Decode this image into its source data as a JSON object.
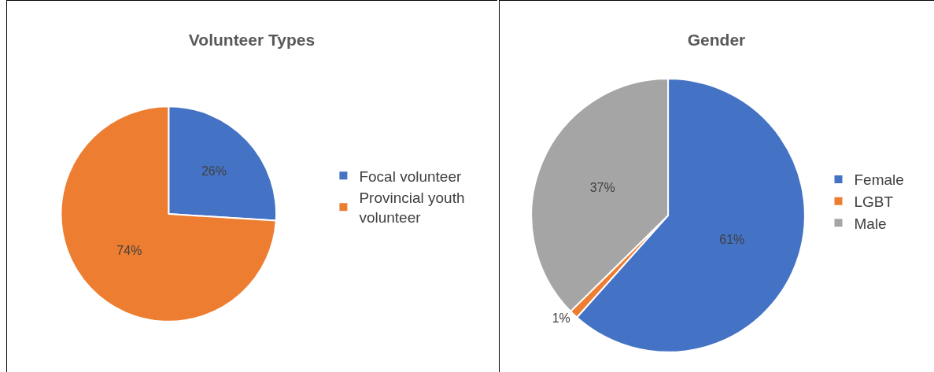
{
  "chart_data": [
    {
      "type": "pie",
      "title": "Volunteer Types",
      "categories": [
        "Focal volunteer",
        "Provincial youth volunteer"
      ],
      "values": [
        26,
        74
      ],
      "colors": [
        "#4472c4",
        "#ed7d31"
      ],
      "value_labels": [
        "26%",
        "74%"
      ],
      "legend": "right"
    },
    {
      "type": "pie",
      "title": "Gender",
      "categories": [
        "Female",
        "LGBT",
        "Male"
      ],
      "values": [
        61,
        1,
        37
      ],
      "colors": [
        "#4472c4",
        "#ed7d31",
        "#a5a5a5"
      ],
      "value_labels": [
        "61%",
        "1%",
        "37%"
      ],
      "legend": "right"
    }
  ]
}
